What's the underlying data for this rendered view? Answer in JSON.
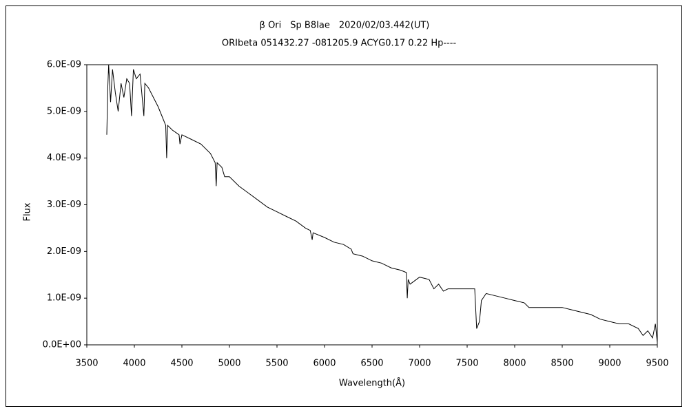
{
  "chart_data": {
    "type": "line",
    "title": "β Ori　Sp B8Iae　2020/02/03.442(UT)",
    "subtitle": "ORIbeta 051432.27 -081205.9 ACYG0.17 0.22 Hp----",
    "x_label": "Wavelength(Å)",
    "y_label": "Flux",
    "color": "#000000",
    "xlim": [
      3500,
      9500
    ],
    "xticks": [
      3500,
      4000,
      4500,
      5000,
      5500,
      6000,
      6500,
      7000,
      7500,
      8000,
      8500,
      9000,
      9500
    ],
    "ylim": [
      0,
      6e-09
    ],
    "yticks": [
      {
        "value": 0,
        "label": "0.0E+00"
      },
      {
        "value": 1e-09,
        "label": "1.0E-09"
      },
      {
        "value": 2e-09,
        "label": "2.0E-09"
      },
      {
        "value": 3e-09,
        "label": "3.0E-09"
      },
      {
        "value": 4e-09,
        "label": "4.0E-09"
      },
      {
        "value": 5e-09,
        "label": "5.0E-09"
      },
      {
        "value": 6e-09,
        "label": "6.0E-09"
      }
    ],
    "x": [
      3710,
      3720,
      3730,
      3750,
      3770,
      3800,
      3830,
      3860,
      3890,
      3920,
      3950,
      3970,
      3990,
      4020,
      4060,
      4100,
      4110,
      4150,
      4200,
      4250,
      4300,
      4330,
      4340,
      4350,
      4400,
      4470,
      4480,
      4500,
      4600,
      4700,
      4800,
      4850,
      4861,
      4870,
      4920,
      4950,
      5000,
      5100,
      5200,
      5300,
      5400,
      5500,
      5600,
      5700,
      5800,
      5850,
      5870,
      5880,
      6000,
      6100,
      6200,
      6280,
      6300,
      6400,
      6500,
      6600,
      6700,
      6800,
      6860,
      6870,
      6880,
      6900,
      7000,
      7100,
      7150,
      7200,
      7250,
      7300,
      7400,
      7500,
      7580,
      7600,
      7630,
      7650,
      7700,
      7800,
      7900,
      8000,
      8100,
      8150,
      8200,
      8300,
      8400,
      8500,
      8600,
      8700,
      8800,
      8900,
      9000,
      9100,
      9200,
      9300,
      9350,
      9400,
      9450,
      9480,
      9500
    ],
    "values": [
      4.5e-09,
      5.5e-09,
      6e-09,
      5.2e-09,
      5.9e-09,
      5.4e-09,
      5e-09,
      5.6e-09,
      5.3e-09,
      5.7e-09,
      5.6e-09,
      4.9e-09,
      5.9e-09,
      5.7e-09,
      5.8e-09,
      4.9e-09,
      5.6e-09,
      5.5e-09,
      5.3e-09,
      5.1e-09,
      4.85e-09,
      4.7e-09,
      4e-09,
      4.7e-09,
      4.6e-09,
      4.5e-09,
      4.3e-09,
      4.5e-09,
      4.4e-09,
      4.3e-09,
      4.1e-09,
      3.9e-09,
      3.4e-09,
      3.9e-09,
      3.8e-09,
      3.6e-09,
      3.6e-09,
      3.4e-09,
      3.25e-09,
      3.1e-09,
      2.95e-09,
      2.85e-09,
      2.75e-09,
      2.65e-09,
      2.5e-09,
      2.45e-09,
      2.25e-09,
      2.4e-09,
      2.3e-09,
      2.2e-09,
      2.15e-09,
      2.05e-09,
      1.95e-09,
      1.9e-09,
      1.8e-09,
      1.75e-09,
      1.65e-09,
      1.6e-09,
      1.55e-09,
      1e-09,
      1.4e-09,
      1.3e-09,
      1.45e-09,
      1.4e-09,
      1.2e-09,
      1.3e-09,
      1.15e-09,
      1.2e-09,
      1.2e-09,
      1.2e-09,
      1.2e-09,
      3.5e-10,
      5e-10,
      9.5e-10,
      1.1e-09,
      1.05e-09,
      1e-09,
      9.5e-10,
      9e-10,
      8e-10,
      8e-10,
      8e-10,
      8e-10,
      8e-10,
      7.5e-10,
      7e-10,
      6.5e-10,
      5.5e-10,
      5e-10,
      4.5e-10,
      4.5e-10,
      3.5e-10,
      2e-10,
      3e-10,
      1.5e-10,
      4.5e-10,
      5e-11
    ]
  }
}
